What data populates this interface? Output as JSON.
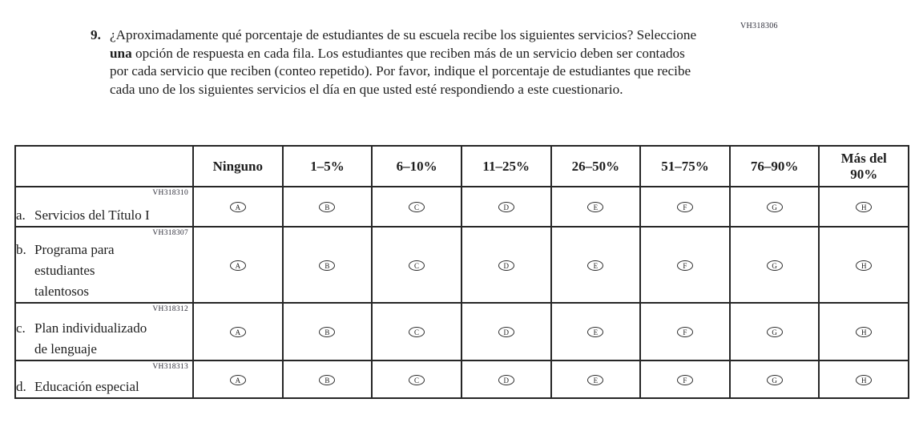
{
  "form_code": "VH318306",
  "question": {
    "number": "9.",
    "text_before_bold": "¿Aproximadamente qué porcentaje de estudiantes de su escuela recibe los siguientes servicios? Seleccione ",
    "bold_text": "una",
    "text_after_bold": " opción de respuesta en cada fila. Los estudiantes que reciben más de un servicio deben ser contados por cada servicio que reciben (conteo repetido). Por favor, indique el porcentaje de estudiantes que recibe cada uno de los siguientes servicios el día en que usted esté respondiendo a este cuestionario."
  },
  "table": {
    "columns": [
      "Ninguno",
      "1–5%",
      "6–10%",
      "11–25%",
      "26–50%",
      "51–75%",
      "76–90%",
      "Más del\n90%"
    ],
    "options": [
      "A",
      "B",
      "C",
      "D",
      "E",
      "F",
      "G",
      "H"
    ],
    "rows": [
      {
        "letter": "a.",
        "text": "Servicios del Título I",
        "code": "VH318310"
      },
      {
        "letter": "b.",
        "text": "Programa para\nestudiantes\ntalentosos",
        "code": "VH318307"
      },
      {
        "letter": "c.",
        "text": "Plan individualizado\nde lenguaje",
        "code": "VH318312"
      },
      {
        "letter": "d.",
        "text": "Educación especial",
        "code": "VH318313"
      }
    ]
  }
}
